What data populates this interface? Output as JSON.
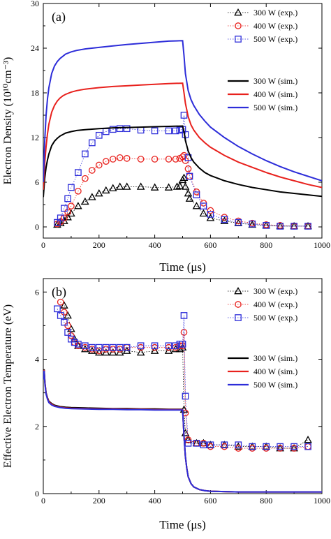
{
  "chart_data": [
    {
      "type": "scatter",
      "panel_label": "(a)",
      "xlabel": "Time (μs)",
      "ylabel": "Electron Density (10¹⁰cm⁻³)",
      "xlim": [
        0,
        1000
      ],
      "ylim": [
        -1.5,
        30
      ],
      "xticks": [
        0,
        200,
        400,
        600,
        800,
        1000
      ],
      "yticks": [
        0,
        6,
        12,
        18,
        24,
        30
      ],
      "legend_placement": "top-right",
      "series": [
        {
          "name": "300 W (exp.)",
          "kind": "exp",
          "marker": "triangle",
          "color": "#000000",
          "x": [
            50,
            62,
            75,
            88,
            100,
            125,
            150,
            175,
            200,
            225,
            250,
            275,
            300,
            350,
            400,
            450,
            480,
            490,
            500,
            505,
            510,
            520,
            525,
            550,
            575,
            600,
            650,
            700,
            750,
            800,
            850,
            900,
            950
          ],
          "y": [
            0.3,
            0.5,
            0.8,
            1.3,
            1.8,
            2.8,
            3.4,
            4.0,
            4.5,
            4.9,
            5.2,
            5.4,
            5.4,
            5.4,
            5.3,
            5.3,
            5.4,
            5.5,
            6.3,
            6.6,
            5.4,
            4.5,
            3.8,
            2.8,
            1.8,
            1.2,
            0.8,
            0.5,
            0.3,
            0.2,
            0.1,
            0.1,
            0.1
          ]
        },
        {
          "name": "400 W (exp.)",
          "kind": "exp",
          "marker": "circle",
          "color": "#e8211d",
          "x": [
            50,
            62,
            75,
            88,
            100,
            125,
            150,
            175,
            200,
            225,
            250,
            275,
            300,
            350,
            400,
            450,
            475,
            490,
            500,
            505,
            510,
            520,
            525,
            550,
            575,
            600,
            650,
            700,
            750,
            800,
            850,
            900,
            950
          ],
          "y": [
            0.4,
            0.7,
            1.2,
            2.0,
            2.8,
            4.8,
            6.5,
            7.6,
            8.3,
            8.8,
            9.1,
            9.3,
            9.2,
            9.1,
            9.1,
            9.1,
            9.1,
            9.2,
            9.4,
            9.6,
            8.9,
            7.8,
            6.8,
            4.7,
            3.2,
            2.2,
            1.3,
            0.8,
            0.5,
            0.3,
            0.2,
            0.1,
            0.1
          ]
        },
        {
          "name": "500 W (exp.)",
          "kind": "exp",
          "marker": "square",
          "color": "#2d2dd9",
          "x": [
            50,
            62,
            75,
            88,
            100,
            125,
            150,
            175,
            200,
            225,
            250,
            275,
            300,
            350,
            400,
            450,
            475,
            490,
            500,
            505,
            510,
            520,
            525,
            550,
            575,
            600,
            650,
            700,
            750,
            800,
            850,
            900,
            950
          ],
          "y": [
            0.6,
            1.2,
            2.5,
            3.8,
            5.3,
            7.3,
            9.8,
            11.3,
            12.3,
            12.8,
            13.1,
            13.2,
            13.2,
            13.0,
            12.9,
            12.9,
            12.9,
            13.0,
            13.1,
            15.0,
            12.4,
            9.3,
            6.8,
            4.3,
            2.8,
            1.7,
            1.0,
            0.6,
            0.4,
            0.2,
            0.1,
            0.1,
            0.1
          ]
        },
        {
          "name": "300 W (sim.)",
          "kind": "sim",
          "color": "#000000",
          "x": [
            0,
            5,
            10,
            15,
            20,
            30,
            40,
            50,
            60,
            70,
            80,
            100,
            120,
            150,
            200,
            250,
            300,
            350,
            400,
            450,
            500,
            505,
            510,
            520,
            530,
            540,
            560,
            580,
            600,
            650,
            700,
            750,
            800,
            850,
            900,
            950,
            1000
          ],
          "y": [
            4.0,
            6.5,
            8.0,
            9.0,
            9.8,
            10.9,
            11.5,
            11.9,
            12.2,
            12.4,
            12.6,
            12.8,
            12.95,
            13.05,
            13.2,
            13.3,
            13.35,
            13.4,
            13.45,
            13.5,
            13.55,
            12.8,
            11.6,
            10.2,
            9.3,
            8.7,
            7.9,
            7.3,
            6.9,
            6.2,
            5.7,
            5.3,
            5.0,
            4.7,
            4.5,
            4.3,
            4.1
          ]
        },
        {
          "name": "400 W (sim.)",
          "kind": "sim",
          "color": "#e8211d",
          "x": [
            0,
            5,
            10,
            15,
            20,
            30,
            40,
            50,
            60,
            70,
            80,
            100,
            120,
            150,
            200,
            250,
            300,
            350,
            400,
            450,
            500,
            505,
            510,
            520,
            530,
            540,
            560,
            580,
            600,
            650,
            700,
            750,
            800,
            850,
            900,
            950,
            1000
          ],
          "y": [
            5.0,
            8.5,
            10.8,
            12.5,
            13.8,
            15.4,
            16.3,
            16.9,
            17.3,
            17.6,
            17.8,
            18.1,
            18.3,
            18.5,
            18.7,
            18.85,
            18.95,
            19.05,
            19.15,
            19.25,
            19.3,
            18.0,
            16.6,
            14.8,
            13.7,
            13.0,
            12.0,
            11.3,
            10.7,
            9.6,
            8.7,
            8.0,
            7.3,
            6.7,
            6.2,
            5.7,
            5.3
          ]
        },
        {
          "name": "500 W (sim.)",
          "kind": "sim",
          "color": "#2d2dd9",
          "x": [
            0,
            5,
            10,
            15,
            20,
            30,
            40,
            50,
            60,
            70,
            80,
            100,
            120,
            150,
            200,
            250,
            300,
            350,
            400,
            450,
            500,
            505,
            510,
            520,
            530,
            540,
            560,
            580,
            600,
            650,
            700,
            750,
            800,
            850,
            900,
            950,
            1000
          ],
          "y": [
            6.0,
            11.5,
            15.0,
            17.2,
            18.7,
            20.6,
            21.6,
            22.2,
            22.6,
            22.9,
            23.2,
            23.5,
            23.7,
            23.9,
            24.1,
            24.3,
            24.5,
            24.65,
            24.8,
            24.95,
            25.0,
            23.0,
            20.6,
            18.3,
            17.1,
            16.3,
            15.1,
            14.2,
            13.4,
            12.0,
            10.8,
            9.8,
            8.9,
            8.1,
            7.4,
            6.8,
            6.2
          ]
        }
      ]
    },
    {
      "type": "scatter",
      "panel_label": "(b)",
      "xlabel": "Time (μs)",
      "ylabel": "Effective Electron Temperature (eV)",
      "xlim": [
        0,
        1000
      ],
      "ylim": [
        0,
        6.4
      ],
      "xticks": [
        0,
        200,
        400,
        600,
        800,
        1000
      ],
      "yticks": [
        0,
        2,
        4,
        6
      ],
      "legend_placement": "top-right",
      "series": [
        {
          "name": "300 W (exp.)",
          "kind": "exp",
          "marker": "triangle",
          "color": "#000000",
          "x": [
            75,
            88,
            100,
            112,
            125,
            150,
            175,
            200,
            225,
            250,
            275,
            300,
            350,
            400,
            450,
            475,
            490,
            500,
            505,
            510,
            520,
            550,
            575,
            600,
            650,
            700,
            750,
            800,
            850,
            900,
            950
          ],
          "y": [
            5.6,
            5.3,
            4.9,
            4.6,
            4.4,
            4.3,
            4.25,
            4.2,
            4.2,
            4.2,
            4.2,
            4.25,
            4.2,
            4.25,
            4.25,
            4.3,
            4.3,
            4.35,
            2.5,
            1.8,
            1.6,
            1.5,
            1.5,
            1.45,
            1.45,
            1.4,
            1.4,
            1.4,
            1.35,
            1.35,
            1.6
          ]
        },
        {
          "name": "400 W (exp.)",
          "kind": "exp",
          "marker": "circle",
          "color": "#e8211d",
          "x": [
            62,
            75,
            88,
            100,
            112,
            125,
            150,
            175,
            200,
            225,
            250,
            275,
            300,
            350,
            400,
            450,
            475,
            490,
            500,
            505,
            510,
            520,
            550,
            575,
            600,
            650,
            700,
            750,
            800,
            850,
            900,
            950
          ],
          "y": [
            5.7,
            5.4,
            5.0,
            4.7,
            4.5,
            4.4,
            4.35,
            4.3,
            4.25,
            4.3,
            4.3,
            4.3,
            4.35,
            4.35,
            4.35,
            4.35,
            4.35,
            4.4,
            4.4,
            4.8,
            2.4,
            1.6,
            1.5,
            1.5,
            1.4,
            1.4,
            1.35,
            1.35,
            1.35,
            1.35,
            1.35,
            1.4
          ]
        },
        {
          "name": "500 W (exp.)",
          "kind": "exp",
          "marker": "square",
          "color": "#2d2dd9",
          "x": [
            50,
            62,
            75,
            88,
            100,
            112,
            125,
            150,
            175,
            200,
            225,
            250,
            275,
            300,
            350,
            400,
            450,
            475,
            490,
            500,
            505,
            510,
            520,
            550,
            575,
            600,
            650,
            700,
            750,
            800,
            850,
            900,
            950
          ],
          "y": [
            5.5,
            5.3,
            5.1,
            4.8,
            4.6,
            4.5,
            4.45,
            4.4,
            4.35,
            4.35,
            4.35,
            4.35,
            4.35,
            4.35,
            4.4,
            4.4,
            4.4,
            4.4,
            4.45,
            4.45,
            5.3,
            2.9,
            1.5,
            1.5,
            1.45,
            1.45,
            1.45,
            1.45,
            1.4,
            1.4,
            1.4,
            1.4,
            1.4
          ]
        },
        {
          "name": "300 W (sim.)",
          "kind": "sim",
          "color": "#000000",
          "x": [
            0,
            3,
            6,
            10,
            15,
            20,
            30,
            40,
            60,
            80,
            100,
            150,
            200,
            250,
            300,
            350,
            400,
            450,
            500,
            502,
            505,
            510,
            515,
            520,
            530,
            540,
            560,
            580,
            600,
            650,
            700,
            800,
            900,
            1000
          ],
          "y": [
            3.5,
            3.7,
            3.3,
            3.0,
            2.85,
            2.75,
            2.68,
            2.63,
            2.59,
            2.57,
            2.56,
            2.55,
            2.54,
            2.53,
            2.53,
            2.52,
            2.52,
            2.51,
            2.51,
            2.2,
            1.7,
            1.1,
            0.75,
            0.5,
            0.3,
            0.2,
            0.12,
            0.09,
            0.07,
            0.06,
            0.05,
            0.05,
            0.05,
            0.05
          ]
        },
        {
          "name": "400 W (sim.)",
          "kind": "sim",
          "color": "#e8211d",
          "x": [
            0,
            3,
            6,
            10,
            15,
            20,
            30,
            40,
            60,
            80,
            100,
            150,
            200,
            250,
            300,
            350,
            400,
            450,
            500,
            502,
            505,
            510,
            515,
            520,
            530,
            540,
            560,
            580,
            600,
            650,
            700,
            800,
            900,
            1000
          ],
          "y": [
            3.45,
            3.68,
            3.28,
            2.98,
            2.83,
            2.73,
            2.66,
            2.61,
            2.57,
            2.55,
            2.54,
            2.53,
            2.52,
            2.52,
            2.51,
            2.51,
            2.5,
            2.5,
            2.5,
            2.2,
            1.7,
            1.1,
            0.75,
            0.5,
            0.3,
            0.2,
            0.12,
            0.09,
            0.07,
            0.06,
            0.05,
            0.05,
            0.05,
            0.05
          ]
        },
        {
          "name": "500 W (sim.)",
          "kind": "sim",
          "color": "#2d2dd9",
          "x": [
            0,
            3,
            6,
            10,
            15,
            20,
            30,
            40,
            60,
            80,
            100,
            150,
            200,
            250,
            300,
            350,
            400,
            450,
            500,
            502,
            505,
            510,
            515,
            520,
            530,
            540,
            560,
            580,
            600,
            650,
            700,
            800,
            900,
            1000
          ],
          "y": [
            3.4,
            3.66,
            3.25,
            2.96,
            2.81,
            2.71,
            2.64,
            2.6,
            2.56,
            2.54,
            2.53,
            2.52,
            2.51,
            2.51,
            2.5,
            2.5,
            2.49,
            2.49,
            2.49,
            2.2,
            1.7,
            1.1,
            0.75,
            0.5,
            0.3,
            0.2,
            0.12,
            0.09,
            0.07,
            0.06,
            0.05,
            0.05,
            0.05,
            0.05
          ]
        }
      ]
    }
  ]
}
